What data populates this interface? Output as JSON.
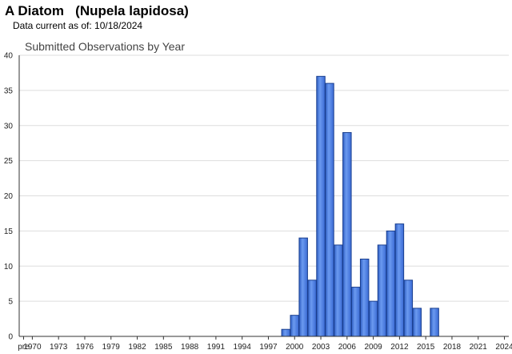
{
  "header": {
    "title": "A Diatom   (Nupela lapidosa)",
    "data_current": "Data current as of: 10/18/2024"
  },
  "chart_data": {
    "type": "bar",
    "title": "Submitted Observations by Year",
    "xlabel": "",
    "ylabel": "",
    "ylim": [
      0,
      40
    ],
    "yticks": [
      0,
      5,
      10,
      15,
      20,
      25,
      30,
      35,
      40
    ],
    "categories": [
      "pre",
      "1970",
      "1971",
      "1972",
      "1973",
      "1974",
      "1975",
      "1976",
      "1977",
      "1978",
      "1979",
      "1980",
      "1981",
      "1982",
      "1983",
      "1984",
      "1985",
      "1986",
      "1987",
      "1988",
      "1989",
      "1990",
      "1991",
      "1992",
      "1993",
      "1994",
      "1995",
      "1996",
      "1997",
      "1998",
      "1999",
      "2000",
      "2001",
      "2002",
      "2003",
      "2004",
      "2005",
      "2006",
      "2007",
      "2008",
      "2009",
      "2010",
      "2011",
      "2012",
      "2013",
      "2014",
      "2015",
      "2016",
      "2017",
      "2018",
      "2019",
      "2020",
      "2021",
      "2022",
      "2023",
      "2024"
    ],
    "xticklabels": [
      "pre",
      "1970",
      "1973",
      "1976",
      "1979",
      "1982",
      "1985",
      "1988",
      "1991",
      "1994",
      "1997",
      "2000",
      "2003",
      "2006",
      "2009",
      "2012",
      "2015",
      "2018",
      "2021",
      "2024"
    ],
    "values": [
      0,
      0,
      0,
      0,
      0,
      0,
      0,
      0,
      0,
      0,
      0,
      0,
      0,
      0,
      0,
      0,
      0,
      0,
      0,
      0,
      0,
      0,
      0,
      0,
      0,
      0,
      0,
      0,
      0,
      0,
      1,
      3,
      14,
      8,
      37,
      36,
      13,
      29,
      7,
      11,
      5,
      13,
      15,
      16,
      8,
      4,
      0,
      4,
      0,
      0,
      0,
      0,
      0,
      0,
      0,
      0
    ],
    "grid": true,
    "colors": {
      "bar_fill": "#4a7fe0",
      "bar_stroke": "#1a3f8f",
      "grid": "#dddddd",
      "axis": "#333333"
    }
  }
}
